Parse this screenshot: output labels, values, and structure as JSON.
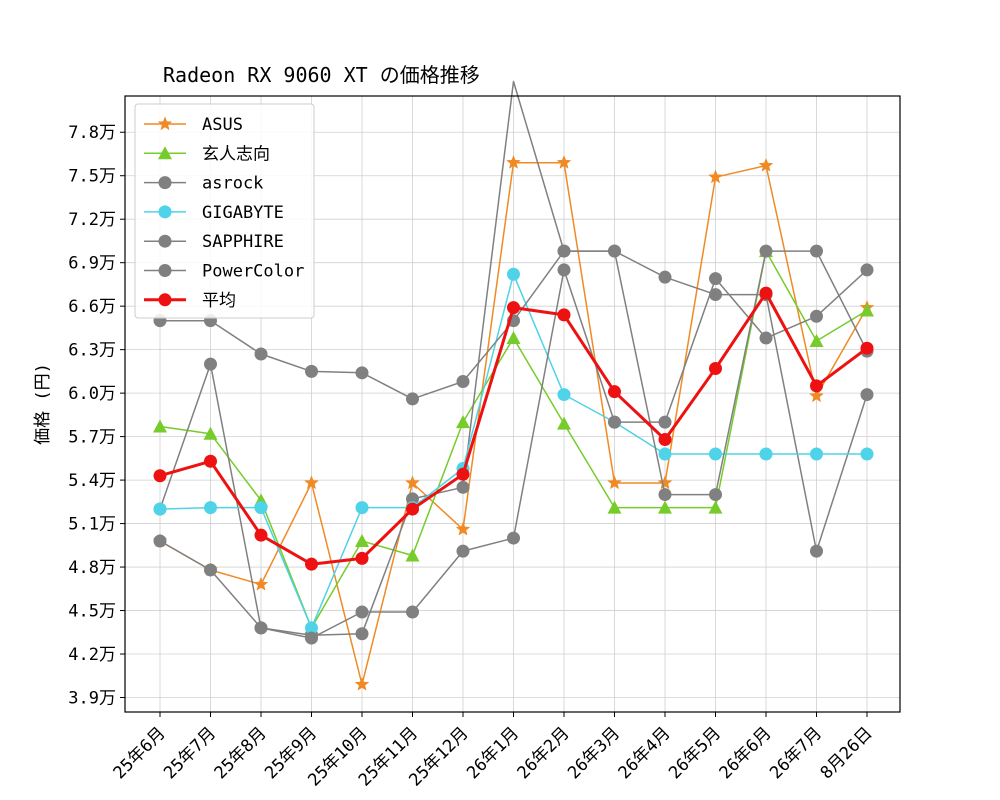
{
  "chart_data": {
    "type": "line",
    "title": "Radeon RX 9060 XT の価格推移",
    "ylabel": "価格 (円)",
    "xlabel": "",
    "categories": [
      "25年6月",
      "25年7月",
      "25年8月",
      "25年9月",
      "25年10月",
      "25年11月",
      "25年12月",
      "26年1月",
      "26年2月",
      "26年3月",
      "26年4月",
      "26年5月",
      "26年6月",
      "26年7月",
      "8月26日"
    ],
    "ylim": [
      38000,
      80500
    ],
    "yticks": [
      39000,
      42000,
      45000,
      48000,
      51000,
      54000,
      57000,
      60000,
      63000,
      66000,
      69000,
      72000,
      75000,
      78000
    ],
    "ytick_labels": [
      "3.9万",
      "4.2万",
      "4.5万",
      "4.8万",
      "5.1万",
      "5.4万",
      "5.7万",
      "6.0万",
      "6.3万",
      "6.6万",
      "6.9万",
      "7.2万",
      "7.5万",
      "7.8万"
    ],
    "grid": true,
    "legend_position": "top-left",
    "series": [
      {
        "name": "ASUS",
        "color": "#f08a24",
        "marker": "star",
        "width": 1.5,
        "values": [
          49800,
          47800,
          46800,
          53800,
          39900,
          53800,
          50600,
          75900,
          75900,
          53800,
          53800,
          74900,
          75700,
          59800,
          65900
        ]
      },
      {
        "name": "玄人志向",
        "color": "#76cc2a",
        "marker": "triangle",
        "width": 1.5,
        "values": [
          57700,
          57200,
          52600,
          43800,
          49800,
          48800,
          58000,
          63800,
          57900,
          52100,
          52100,
          52100,
          69800,
          63600,
          65700
        ]
      },
      {
        "name": "asrock",
        "color": "#808080",
        "marker": "circle",
        "width": 1.5,
        "values": [
          52000,
          62000,
          43800,
          43300,
          43400,
          52700,
          53500,
          81500,
          69800,
          69800,
          68000,
          66800,
          66800,
          49100,
          59900
        ]
      },
      {
        "name": "GIGABYTE",
        "color": "#4fd3e8",
        "marker": "circle",
        "width": 1.5,
        "values": [
          52000,
          52100,
          52100,
          43800,
          52100,
          52100,
          54800,
          68200,
          59900,
          58000,
          55800,
          55800,
          55800,
          55800,
          55800
        ]
      },
      {
        "name": "SAPPHIRE",
        "color": "#808080",
        "marker": "circle",
        "width": 1.5,
        "values": [
          49800,
          47800,
          43800,
          43100,
          44900,
          44900,
          49100,
          50000,
          68500,
          58000,
          58000,
          67900,
          63800,
          65300,
          68500
        ]
      },
      {
        "name": "PowerColor",
        "color": "#808080",
        "marker": "circle",
        "width": 1.5,
        "values": [
          65000,
          65000,
          62700,
          61500,
          61400,
          59600,
          60800,
          65000,
          69800,
          69800,
          53000,
          53000,
          69800,
          69800,
          62900
        ]
      },
      {
        "name": "平均",
        "color": "#ee1111",
        "marker": "circle",
        "width": 3,
        "values": [
          54300,
          55300,
          50200,
          48200,
          48600,
          52000,
          54400,
          65900,
          65400,
          60100,
          56800,
          61700,
          66900,
          60500,
          63100
        ]
      }
    ]
  }
}
